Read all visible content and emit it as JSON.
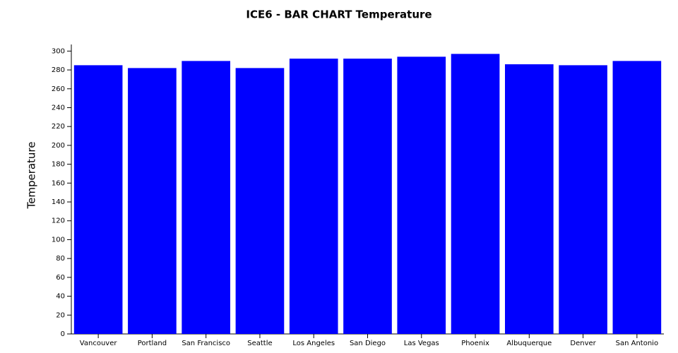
{
  "chart_data": {
    "type": "bar",
    "title": "ICE6 - BAR CHART Temperature",
    "y_label": "Temperature",
    "categories": [
      "Vancouver",
      "Portland",
      "San Francisco",
      "Seattle",
      "Los Angeles",
      "San Diego",
      "Las Vegas",
      "Phoenix",
      "Albuquerque",
      "Denver",
      "San Antonio"
    ],
    "values": [
      285,
      282,
      289.5,
      282,
      292,
      292,
      294,
      297,
      286,
      285,
      289.5
    ],
    "color": "#0000ff",
    "ylim": [
      0,
      307
    ],
    "yticks": [
      0,
      20,
      40,
      60,
      80,
      100,
      120,
      140,
      160,
      180,
      200,
      220,
      240,
      260,
      280,
      300
    ],
    "grid": false
  }
}
